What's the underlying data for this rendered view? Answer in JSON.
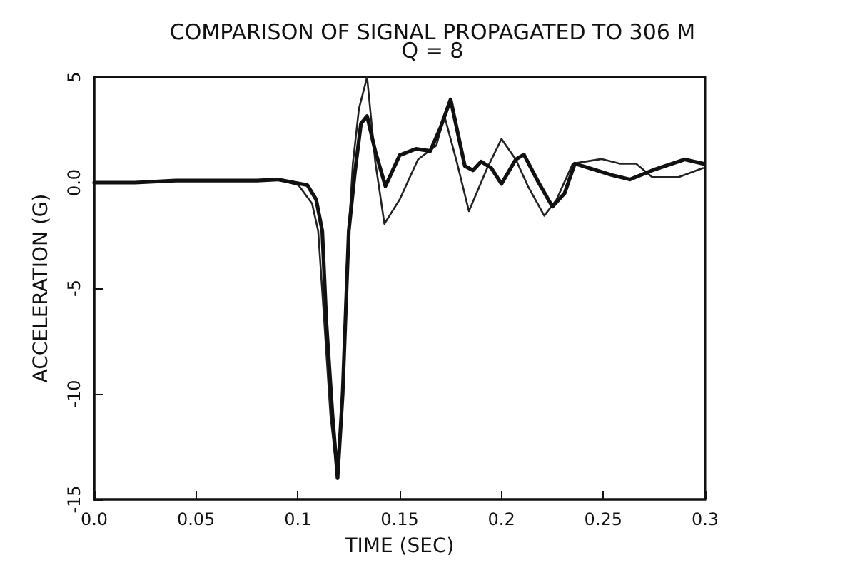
{
  "chart_data": {
    "type": "line",
    "title": "COMPARISON OF SIGNAL PROPAGATED TO 306 M",
    "subtitle": "Q = 8",
    "xlabel": "TIME (SEC)",
    "ylabel": "ACCELERATION (G)",
    "xlim": [
      0,
      0.3
    ],
    "ylim": [
      -15,
      5
    ],
    "xticks": [
      {
        "value": 0,
        "label": "0.0"
      },
      0.05,
      0.1,
      0.15,
      0.2,
      0.25,
      0.3
    ],
    "yticks": [
      -15,
      -10,
      -5,
      {
        "value": 0,
        "label": "0.0"
      },
      5
    ],
    "marker": "none",
    "line_style": "solid",
    "series": [
      {
        "color": "#222222",
        "x": [
          0,
          0.02,
          0.04,
          0.06,
          0.08,
          0.09,
          0.1003,
          0.107,
          0.11,
          0.113,
          0.116,
          0.1195,
          0.122,
          0.124,
          0.127,
          0.13,
          0.134,
          0.138,
          0.1425,
          0.15,
          0.159,
          0.168,
          0.172,
          0.178,
          0.184,
          0.193,
          0.2,
          0.207,
          0.213,
          0.221,
          0.227,
          0.235,
          0.249,
          0.258,
          0.266,
          0.274,
          0.287,
          0.299
        ],
        "values": [
          0,
          0,
          0.1,
          0.1,
          0.1,
          0.15,
          -0.12,
          -1.0,
          -2.3,
          -6.6,
          -11,
          -14,
          -10,
          -4,
          0.9,
          3.5,
          5,
          1,
          -1.95,
          -0.8,
          1.1,
          1.76,
          3.15,
          1.0,
          -1.35,
          0.69,
          2.07,
          1.1,
          -0.17,
          -1.57,
          -0.81,
          0.9,
          1.12,
          0.9,
          0.9,
          0.26,
          0.26,
          0.69
        ]
      },
      {
        "color": "#111111",
        "x": [
          0,
          0.02,
          0.04,
          0.06,
          0.08,
          0.09,
          0.1047,
          0.109,
          0.112,
          0.114,
          0.117,
          0.1195,
          0.122,
          0.125,
          0.128,
          0.131,
          0.134,
          0.138,
          0.143,
          0.15,
          0.158,
          0.165,
          0.17,
          0.175,
          0.182,
          0.186,
          0.19,
          0.195,
          0.2,
          0.207,
          0.211,
          0.218,
          0.225,
          0.231,
          0.236,
          0.243,
          0.254,
          0.263,
          0.274,
          0.29,
          0.299
        ],
        "values": [
          0,
          0,
          0.1,
          0.1,
          0.1,
          0.15,
          -0.12,
          -0.8,
          -2.3,
          -6.6,
          -11,
          -14,
          -10,
          -2.3,
          0.47,
          2.8,
          3.15,
          1.5,
          -0.17,
          1.3,
          1.6,
          1.5,
          2.6,
          3.94,
          0.79,
          0.58,
          1.0,
          0.69,
          -0.06,
          1.1,
          1.33,
          0.04,
          -1.14,
          -0.5,
          0.9,
          0.69,
          0.36,
          0.15,
          0.58,
          1.1,
          0.9
        ]
      }
    ]
  }
}
